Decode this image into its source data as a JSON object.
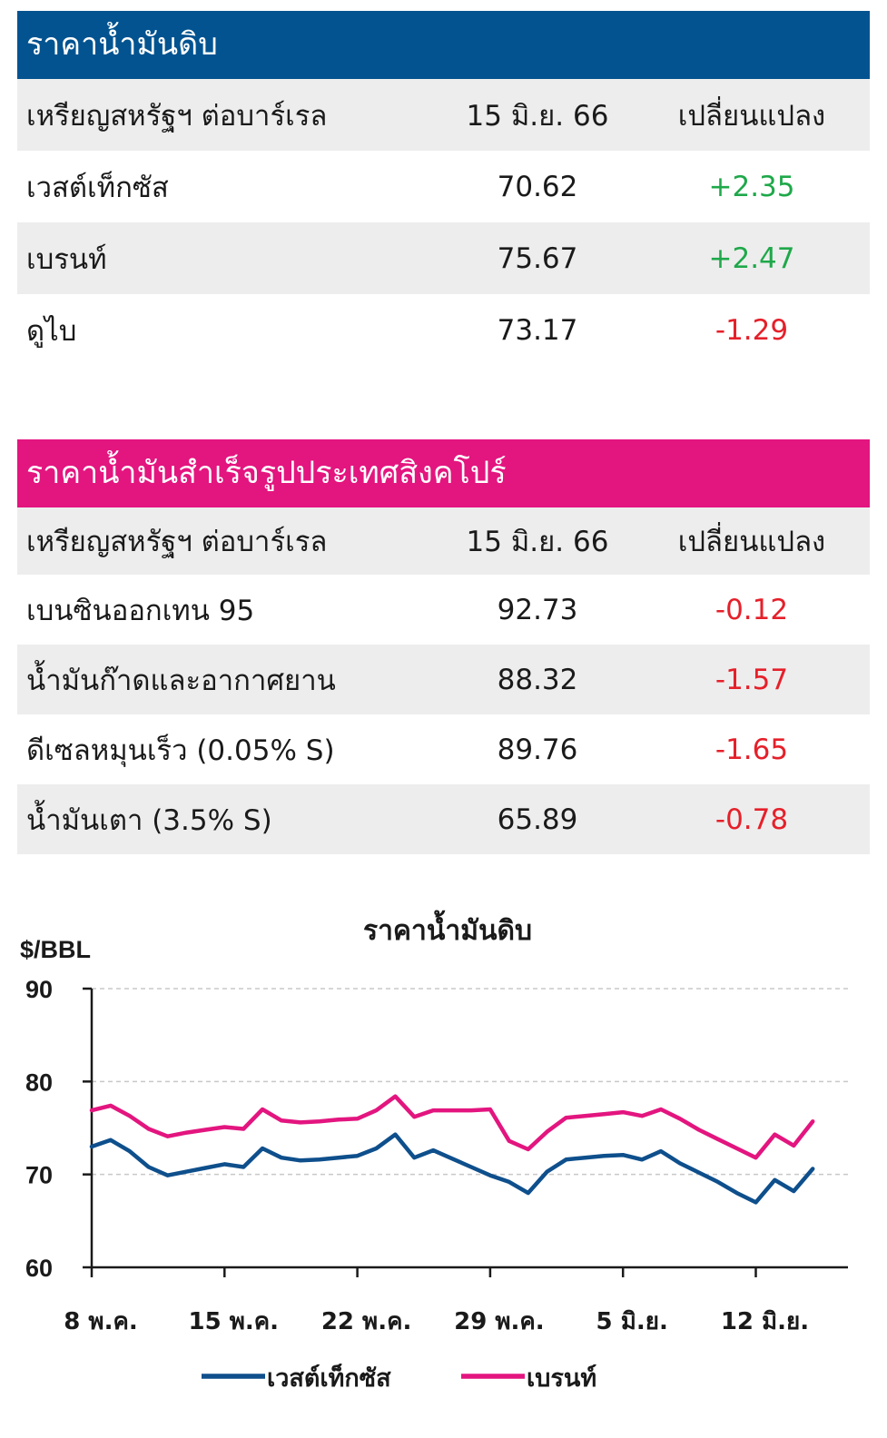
{
  "crude_table": {
    "title": "ราคาน้ำมันดิบ",
    "header": {
      "unit": "เหรียญสหรัฐฯ ต่อบาร์เรล",
      "date": "15 มิ.ย. 66",
      "change": "เปลี่ยนแปลง"
    },
    "rows": [
      {
        "name": "เวสต์เท็กซัส",
        "price": "70.62",
        "change": "+2.35"
      },
      {
        "name": "เบรนท์",
        "price": "75.67",
        "change": "+2.47"
      },
      {
        "name": "ดูไบ",
        "price": "73.17",
        "change": "-1.29"
      }
    ]
  },
  "refined_table": {
    "title": "ราคาน้ำมันสำเร็จรูปประเทศสิงคโปร์",
    "header": {
      "unit": "เหรียญสหรัฐฯ ต่อบาร์เรล",
      "date": "15 มิ.ย. 66",
      "change": "เปลี่ยนแปลง"
    },
    "rows": [
      {
        "name": "เบนซินออกเทน 95",
        "price": "92.73",
        "change": "-0.12"
      },
      {
        "name": "น้ำมันก๊าดและอากาศยาน",
        "price": "88.32",
        "change": "-1.57"
      },
      {
        "name": "ดีเซลหมุนเร็ว (0.05% S)",
        "price": "89.76",
        "change": "-1.65"
      },
      {
        "name": "น้ำมันเตา (3.5% S)",
        "price": "65.89",
        "change": "-0.78"
      }
    ]
  },
  "colors": {
    "header_blue": "#025390",
    "header_pink": "#e3157f",
    "positive": "#1fa84a",
    "negative": "#e5202a",
    "wti": "#0e4f8c",
    "brent": "#e3157f"
  },
  "chart_data": {
    "type": "line",
    "title": "ราคาน้ำมันดิบ",
    "ylabel": "$/BBL",
    "xlabel": "",
    "ylim": [
      60,
      90
    ],
    "yticks": [
      60,
      70,
      80,
      90
    ],
    "grid": true,
    "legend": "bottom",
    "x_range_days": [
      0,
      40
    ],
    "xtick_labels": [
      "8 พ.ค.",
      "15 พ.ค.",
      "22 พ.ค.",
      "29 พ.ค.",
      "5 มิ.ย.",
      "12 มิ.ย."
    ],
    "xtick_days": [
      0,
      7,
      14,
      21,
      28,
      35
    ],
    "series": [
      {
        "name": "เวสต์เท็กซัส",
        "days": [
          0,
          1,
          2,
          3,
          4,
          5,
          6,
          7,
          8,
          9,
          10,
          11,
          12,
          13,
          14,
          15,
          16,
          17,
          18,
          19,
          20,
          21,
          22,
          23,
          24,
          25,
          26,
          27,
          28,
          29,
          30,
          31,
          32,
          33,
          34,
          35,
          36,
          37,
          38
        ],
        "values": [
          73,
          73.7,
          72.5,
          70.8,
          69.9,
          70.3,
          70.7,
          71.1,
          70.8,
          72.8,
          71.8,
          71.5,
          71.6,
          71.8,
          72,
          72.8,
          74.3,
          71.8,
          72.6,
          71.7,
          70.8,
          69.9,
          69.2,
          68,
          70.3,
          71.6,
          71.8,
          72,
          72.1,
          71.6,
          72.5,
          71.2,
          70.2,
          69.2,
          68,
          67,
          69.4,
          68.2,
          70.6
        ]
      },
      {
        "name": "เบรนท์",
        "days": [
          0,
          1,
          2,
          3,
          4,
          5,
          6,
          7,
          8,
          9,
          10,
          11,
          12,
          13,
          14,
          15,
          16,
          17,
          18,
          19,
          20,
          21,
          22,
          23,
          24,
          25,
          26,
          27,
          28,
          29,
          30,
          31,
          32,
          33,
          34,
          35,
          36,
          37,
          38
        ],
        "values": [
          76.9,
          77.4,
          76.3,
          74.9,
          74.1,
          74.5,
          74.8,
          75.1,
          74.9,
          77,
          75.8,
          75.6,
          75.7,
          75.9,
          76,
          76.9,
          78.4,
          76.2,
          76.9,
          76.9,
          76.9,
          77,
          73.6,
          72.7,
          74.6,
          76.1,
          76.3,
          76.5,
          76.7,
          76.3,
          77,
          76,
          74.8,
          73.8,
          72.8,
          71.8,
          74.3,
          73.1,
          75.7
        ]
      }
    ]
  }
}
